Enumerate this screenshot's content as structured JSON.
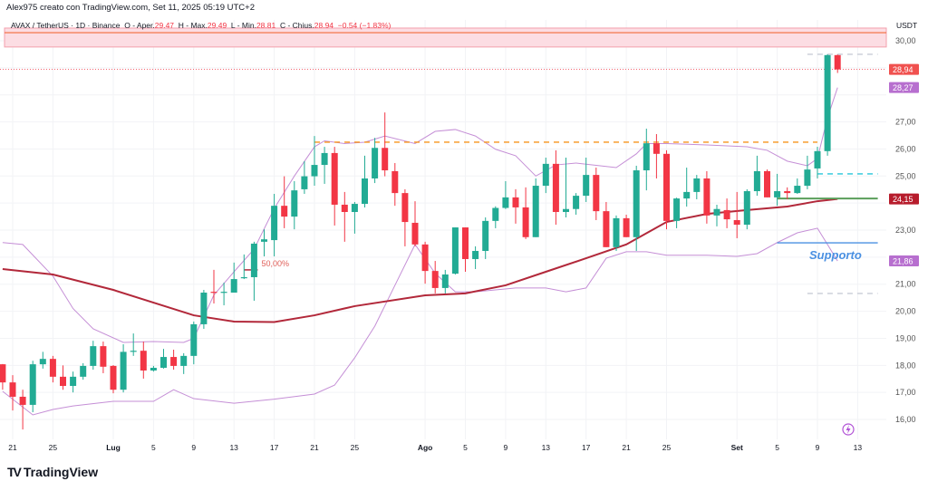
{
  "credit": "Alex975 creato con TradingView.com, Set 11, 2025 05:19 UTC+2",
  "legend": {
    "symbol": "AVAX / TetherUS · 1D · Binance",
    "open_label": "O - Aper.",
    "open": "29.47",
    "high_label": "H - Max.",
    "high": "29.49",
    "low_label": "L - Min.",
    "low": "28.81",
    "close_label": "C - Chius.",
    "close": "28.94",
    "change": "−0.54 (−1.83%)"
  },
  "logo": "TradingView",
  "chart_data": {
    "type": "candlestick",
    "currency": "USDT",
    "ylim": [
      15.5,
      30.5
    ],
    "y_ticks": [
      "30,00",
      "29,00",
      "28,00",
      "27,00",
      "26,00",
      "25,00",
      "24,00",
      "23,00",
      "22,00",
      "21,00",
      "20,00",
      "19,00",
      "18,00",
      "17,00",
      "16,00"
    ],
    "x_ticks": [
      {
        "date": "2025-06-21",
        "label": "21"
      },
      {
        "date": "2025-06-25",
        "label": "25"
      },
      {
        "date": "2025-07-01",
        "label": "Lug",
        "bold": true
      },
      {
        "date": "2025-07-05",
        "label": "5"
      },
      {
        "date": "2025-07-09",
        "label": "9"
      },
      {
        "date": "2025-07-13",
        "label": "13"
      },
      {
        "date": "2025-07-17",
        "label": "17"
      },
      {
        "date": "2025-07-21",
        "label": "21"
      },
      {
        "date": "2025-07-25",
        "label": "25"
      },
      {
        "date": "2025-08-01",
        "label": "Ago",
        "bold": true
      },
      {
        "date": "2025-08-05",
        "label": "5"
      },
      {
        "date": "2025-08-09",
        "label": "9"
      },
      {
        "date": "2025-08-13",
        "label": "13"
      },
      {
        "date": "2025-08-17",
        "label": "17"
      },
      {
        "date": "2025-08-21",
        "label": "21"
      },
      {
        "date": "2025-08-25",
        "label": "25"
      },
      {
        "date": "2025-09-01",
        "label": "Set",
        "bold": true
      },
      {
        "date": "2025-09-05",
        "label": "5"
      },
      {
        "date": "2025-09-09",
        "label": "9"
      },
      {
        "date": "2025-09-13",
        "label": "13"
      }
    ],
    "colors": {
      "up": "#22ab94",
      "down": "#f23645",
      "ma": "#b2283a",
      "bands": "#c58fd6",
      "resistance": "#f7931a",
      "support": "#4a90e2",
      "level_green": "#5a9e5a",
      "level_cyan": "#26c6da"
    },
    "candles_fields": [
      "date",
      "open",
      "high",
      "low",
      "close"
    ],
    "candles": [
      [
        "2025-06-20",
        18.04,
        18.05,
        17.1,
        17.37
      ],
      [
        "2025-06-21",
        17.37,
        17.64,
        16.33,
        16.84
      ],
      [
        "2025-06-22",
        16.84,
        17.1,
        15.63,
        16.54
      ],
      [
        "2025-06-23",
        16.54,
        18.17,
        16.27,
        18.04
      ],
      [
        "2025-06-24",
        18.04,
        18.5,
        17.88,
        18.24
      ],
      [
        "2025-06-25",
        18.24,
        18.35,
        17.37,
        17.58
      ],
      [
        "2025-06-26",
        17.58,
        18.0,
        17.1,
        17.24
      ],
      [
        "2025-06-27",
        17.24,
        17.77,
        17.0,
        17.58
      ],
      [
        "2025-06-28",
        17.58,
        18.08,
        17.47,
        17.98
      ],
      [
        "2025-06-29",
        17.98,
        18.91,
        17.84,
        18.71
      ],
      [
        "2025-06-30",
        18.71,
        18.88,
        17.71,
        17.95
      ],
      [
        "2025-07-01",
        17.98,
        18.01,
        16.97,
        17.1
      ],
      [
        "2025-07-02",
        17.1,
        18.78,
        17.0,
        18.5
      ],
      [
        "2025-07-03",
        18.5,
        19.18,
        18.35,
        18.54
      ],
      [
        "2025-07-04",
        18.54,
        18.88,
        17.51,
        17.81
      ],
      [
        "2025-07-05",
        17.81,
        17.98,
        17.77,
        17.91
      ],
      [
        "2025-07-06",
        17.91,
        18.61,
        17.88,
        18.31
      ],
      [
        "2025-07-07",
        18.31,
        18.58,
        17.84,
        17.98
      ],
      [
        "2025-07-08",
        17.98,
        18.45,
        17.68,
        18.35
      ],
      [
        "2025-07-09",
        18.35,
        19.62,
        18.04,
        19.52
      ],
      [
        "2025-07-10",
        19.52,
        20.79,
        19.35,
        20.69
      ],
      [
        "2025-07-11",
        20.72,
        21.53,
        20.29,
        20.69
      ],
      [
        "2025-07-12",
        20.69,
        21.06,
        20.22,
        20.72
      ],
      [
        "2025-07-13",
        20.69,
        21.8,
        20.69,
        21.19
      ],
      [
        "2025-07-14",
        21.23,
        22.1,
        21.19,
        21.26
      ],
      [
        "2025-07-15",
        21.26,
        22.57,
        20.39,
        22.5
      ],
      [
        "2025-07-16",
        22.57,
        23.03,
        22.03,
        22.66
      ],
      [
        "2025-07-17",
        22.63,
        24.34,
        22.03,
        23.9
      ],
      [
        "2025-07-18",
        23.9,
        24.99,
        23.07,
        23.5
      ],
      [
        "2025-07-19",
        23.5,
        24.81,
        23.03,
        24.47
      ],
      [
        "2025-07-20",
        24.51,
        25.55,
        24.34,
        24.99
      ],
      [
        "2025-07-21",
        24.99,
        26.48,
        24.64,
        25.41
      ],
      [
        "2025-07-22",
        25.41,
        26.08,
        24.71,
        25.85
      ],
      [
        "2025-07-23",
        25.85,
        26.08,
        23.17,
        23.94
      ],
      [
        "2025-07-24",
        23.94,
        24.41,
        22.57,
        23.67
      ],
      [
        "2025-07-25",
        23.67,
        24.04,
        22.87,
        23.97
      ],
      [
        "2025-07-26",
        23.97,
        25.75,
        23.84,
        24.91
      ],
      [
        "2025-07-27",
        24.91,
        26.41,
        24.74,
        26.04
      ],
      [
        "2025-07-28",
        26.04,
        27.35,
        24.99,
        25.21
      ],
      [
        "2025-07-29",
        25.18,
        25.48,
        23.9,
        24.37
      ],
      [
        "2025-07-30",
        24.37,
        24.51,
        22.4,
        23.3
      ],
      [
        "2025-07-31",
        23.27,
        24.07,
        22.4,
        22.47
      ],
      [
        "2025-08-01",
        22.47,
        22.57,
        21.02,
        21.49
      ],
      [
        "2025-08-02",
        21.49,
        21.86,
        20.66,
        20.86
      ],
      [
        "2025-08-03",
        20.86,
        21.53,
        20.66,
        21.36
      ],
      [
        "2025-08-04",
        21.39,
        23.1,
        21.36,
        23.1
      ],
      [
        "2025-08-05",
        23.1,
        23.1,
        21.46,
        21.93
      ],
      [
        "2025-08-06",
        21.93,
        22.4,
        21.56,
        22.23
      ],
      [
        "2025-08-07",
        22.23,
        23.47,
        21.93,
        23.34
      ],
      [
        "2025-08-08",
        23.34,
        23.88,
        23.07,
        23.82
      ],
      [
        "2025-08-09",
        23.82,
        24.81,
        23.78,
        24.21
      ],
      [
        "2025-08-10",
        24.21,
        24.51,
        23.24,
        23.84
      ],
      [
        "2025-08-11",
        23.84,
        24.58,
        22.67,
        22.74
      ],
      [
        "2025-08-12",
        22.74,
        24.91,
        22.74,
        24.64
      ],
      [
        "2025-08-13",
        24.64,
        25.68,
        24.37,
        25.45
      ],
      [
        "2025-08-14",
        25.45,
        25.95,
        23.2,
        23.67
      ],
      [
        "2025-08-15",
        23.67,
        25.68,
        23.47,
        23.78
      ],
      [
        "2025-08-16",
        23.78,
        24.37,
        23.57,
        24.27
      ],
      [
        "2025-08-17",
        24.27,
        25.68,
        24.04,
        25.04
      ],
      [
        "2025-08-18",
        25.04,
        25.31,
        23.37,
        23.7
      ],
      [
        "2025-08-19",
        23.7,
        24.04,
        22.37,
        22.37
      ],
      [
        "2025-08-20",
        22.37,
        23.54,
        22.23,
        23.44
      ],
      [
        "2025-08-21",
        23.44,
        23.57,
        22.74,
        22.74
      ],
      [
        "2025-08-22",
        22.74,
        25.38,
        22.23,
        25.21
      ],
      [
        "2025-08-23",
        25.21,
        26.75,
        24.47,
        26.21
      ],
      [
        "2025-08-24",
        26.21,
        26.55,
        24.91,
        25.82
      ],
      [
        "2025-08-25",
        25.82,
        25.95,
        23.03,
        23.34
      ],
      [
        "2025-08-26",
        23.34,
        24.2,
        23.07,
        24.17
      ],
      [
        "2025-08-27",
        24.17,
        25.31,
        23.87,
        24.41
      ],
      [
        "2025-08-28",
        24.41,
        25.04,
        24.14,
        24.91
      ],
      [
        "2025-08-29",
        24.91,
        25.18,
        23.24,
        23.54
      ],
      [
        "2025-08-30",
        23.54,
        23.94,
        23.14,
        23.78
      ],
      [
        "2025-08-31",
        23.74,
        24.17,
        23.07,
        23.4
      ],
      [
        "2025-09-01",
        23.37,
        24.41,
        22.7,
        23.2
      ],
      [
        "2025-09-02",
        23.2,
        24.51,
        23.03,
        24.44
      ],
      [
        "2025-09-03",
        24.44,
        25.75,
        24.27,
        25.18
      ],
      [
        "2025-09-04",
        25.18,
        25.24,
        24.21,
        24.21
      ],
      [
        "2025-09-05",
        24.21,
        25.08,
        23.9,
        24.44
      ],
      [
        "2025-09-06",
        24.44,
        24.58,
        24.14,
        24.37
      ],
      [
        "2025-09-07",
        24.37,
        24.91,
        24.34,
        24.64
      ],
      [
        "2025-09-08",
        24.64,
        25.75,
        24.51,
        25.24
      ],
      [
        "2025-09-09",
        25.28,
        26.08,
        24.91,
        25.92
      ],
      [
        "2025-09-10",
        25.92,
        29.5,
        25.75,
        29.47
      ],
      [
        "2025-09-11",
        29.47,
        29.49,
        28.81,
        28.94
      ]
    ],
    "moving_average": [
      [
        "2025-06-20",
        21.56
      ],
      [
        "2025-06-25",
        21.36
      ],
      [
        "2025-07-01",
        20.79
      ],
      [
        "2025-07-09",
        19.85
      ],
      [
        "2025-07-13",
        19.62
      ],
      [
        "2025-07-17",
        19.6
      ],
      [
        "2025-07-21",
        19.85
      ],
      [
        "2025-07-25",
        20.19
      ],
      [
        "2025-08-01",
        20.59
      ],
      [
        "2025-08-05",
        20.66
      ],
      [
        "2025-08-09",
        20.96
      ],
      [
        "2025-08-13",
        21.46
      ],
      [
        "2025-08-17",
        21.96
      ],
      [
        "2025-08-21",
        22.47
      ],
      [
        "2025-08-25",
        23.3
      ],
      [
        "2025-08-29",
        23.6
      ],
      [
        "2025-09-02",
        23.74
      ],
      [
        "2025-09-06",
        23.87
      ],
      [
        "2025-09-09",
        24.07
      ],
      [
        "2025-09-11",
        24.15
      ]
    ],
    "upper_band": [
      [
        "2025-06-20",
        22.54
      ],
      [
        "2025-06-22",
        22.47
      ],
      [
        "2025-06-25",
        21.3
      ],
      [
        "2025-06-27",
        20.1
      ],
      [
        "2025-06-29",
        19.35
      ],
      [
        "2025-07-02",
        18.85
      ],
      [
        "2025-07-05",
        18.88
      ],
      [
        "2025-07-08",
        18.85
      ],
      [
        "2025-07-09",
        19.0
      ],
      [
        "2025-07-11",
        20.6
      ],
      [
        "2025-07-13",
        21.46
      ],
      [
        "2025-07-15",
        22.3
      ],
      [
        "2025-07-17",
        23.8
      ],
      [
        "2025-07-19",
        25.0
      ],
      [
        "2025-07-21",
        26.08
      ],
      [
        "2025-07-22",
        26.3
      ],
      [
        "2025-07-24",
        26.2
      ],
      [
        "2025-07-26",
        26.25
      ],
      [
        "2025-07-28",
        26.48
      ],
      [
        "2025-07-31",
        26.2
      ],
      [
        "2025-08-02",
        26.65
      ],
      [
        "2025-08-04",
        26.72
      ],
      [
        "2025-08-06",
        26.48
      ],
      [
        "2025-08-08",
        25.99
      ],
      [
        "2025-08-10",
        25.75
      ],
      [
        "2025-08-12",
        25.0
      ],
      [
        "2025-08-14",
        25.41
      ],
      [
        "2025-08-16",
        25.48
      ],
      [
        "2025-08-20",
        25.31
      ],
      [
        "2025-08-22",
        25.82
      ],
      [
        "2025-08-23",
        26.2
      ],
      [
        "2025-08-25",
        26.2
      ],
      [
        "2025-08-29",
        26.15
      ],
      [
        "2025-09-02",
        26.08
      ],
      [
        "2025-09-04",
        25.95
      ],
      [
        "2025-09-06",
        25.55
      ],
      [
        "2025-09-08",
        25.38
      ],
      [
        "2025-09-09",
        25.65
      ],
      [
        "2025-09-10",
        27.15
      ],
      [
        "2025-09-11",
        28.27
      ]
    ],
    "lower_band": [
      [
        "2025-06-20",
        17.04
      ],
      [
        "2025-06-23",
        16.17
      ],
      [
        "2025-06-25",
        16.37
      ],
      [
        "2025-06-27",
        16.5
      ],
      [
        "2025-07-01",
        16.67
      ],
      [
        "2025-07-05",
        16.67
      ],
      [
        "2025-07-07",
        17.1
      ],
      [
        "2025-07-09",
        16.77
      ],
      [
        "2025-07-13",
        16.6
      ],
      [
        "2025-07-17",
        16.75
      ],
      [
        "2025-07-21",
        16.94
      ],
      [
        "2025-07-23",
        17.27
      ],
      [
        "2025-07-25",
        18.28
      ],
      [
        "2025-07-27",
        19.45
      ],
      [
        "2025-07-29",
        20.96
      ],
      [
        "2025-07-31",
        22.47
      ],
      [
        "2025-08-02",
        21.4
      ],
      [
        "2025-08-04",
        20.72
      ],
      [
        "2025-08-06",
        20.72
      ],
      [
        "2025-08-10",
        20.86
      ],
      [
        "2025-08-13",
        20.86
      ],
      [
        "2025-08-15",
        20.72
      ],
      [
        "2025-08-17",
        20.86
      ],
      [
        "2025-08-19",
        21.96
      ],
      [
        "2025-08-21",
        22.2
      ],
      [
        "2025-08-23",
        22.2
      ],
      [
        "2025-08-25",
        22.07
      ],
      [
        "2025-08-29",
        22.07
      ],
      [
        "2025-09-01",
        22.03
      ],
      [
        "2025-09-03",
        22.13
      ],
      [
        "2025-09-05",
        22.54
      ],
      [
        "2025-09-07",
        22.9
      ],
      [
        "2025-09-09",
        23.07
      ],
      [
        "2025-09-10",
        22.47
      ],
      [
        "2025-09-11",
        21.86
      ]
    ],
    "zone": {
      "from": 29.77,
      "to": 30.47,
      "line": 30.3
    },
    "levels": [
      {
        "name": "resistance",
        "price": 26.25,
        "start": "2025-07-21",
        "end": "2025-09-09",
        "style": "dashed",
        "color": "#f7931a"
      },
      {
        "name": "cyan-level",
        "price": 25.08,
        "start": "2025-09-09",
        "end": "2025-09-15",
        "style": "dashed",
        "color": "#26c6da"
      },
      {
        "name": "green-level",
        "price": 24.17,
        "start": "2025-09-05",
        "end": "2025-09-15",
        "style": "solid",
        "color": "#5a9e5a"
      },
      {
        "name": "support",
        "price": 22.53,
        "start": "2025-09-05",
        "end": "2025-09-15",
        "style": "solid",
        "color": "#4a90e2"
      },
      {
        "name": "low-level",
        "price": 20.66,
        "start": "2025-09-08",
        "end": "2025-09-15",
        "style": "dashed",
        "color": "#c8ccd6"
      },
      {
        "name": "high-level",
        "price": 29.5,
        "start": "2025-09-08",
        "end": "2025-09-15",
        "style": "dashed",
        "color": "#c8ccd6"
      }
    ],
    "support_label": "Supporto",
    "fib_label": "50,00%",
    "fib_price": 21.53,
    "price_labels": [
      {
        "text": "28,94",
        "price": 28.94,
        "color": "#f0514f"
      },
      {
        "text": "28,27",
        "price": 28.27,
        "color": "#b76fcf"
      },
      {
        "text": "24,15",
        "price": 24.15,
        "color": "#b71c2c"
      },
      {
        "text": "21,86",
        "price": 21.86,
        "color": "#b76fcf"
      }
    ],
    "last_price": 28.94
  }
}
